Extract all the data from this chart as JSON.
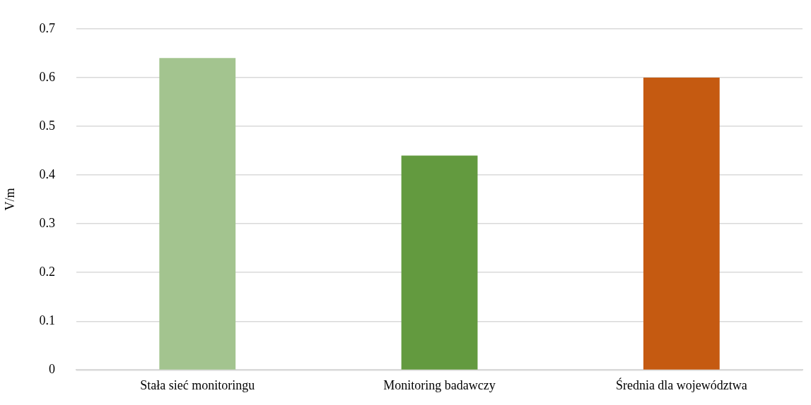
{
  "chart_data": {
    "type": "bar",
    "ylabel": "V/m",
    "categories": [
      "Stała sieć monitoringu",
      "Monitoring badawczy",
      "Średnia dla województwa"
    ],
    "values": [
      0.64,
      0.44,
      0.6
    ],
    "colors": [
      "#a3c48f",
      "#639a3f",
      "#c55a11"
    ],
    "ylim": [
      0,
      0.7
    ],
    "yticks": [
      0,
      0.1,
      0.2,
      0.3,
      0.4,
      0.5,
      0.6,
      0.7
    ],
    "grid": "y",
    "legend": false
  }
}
